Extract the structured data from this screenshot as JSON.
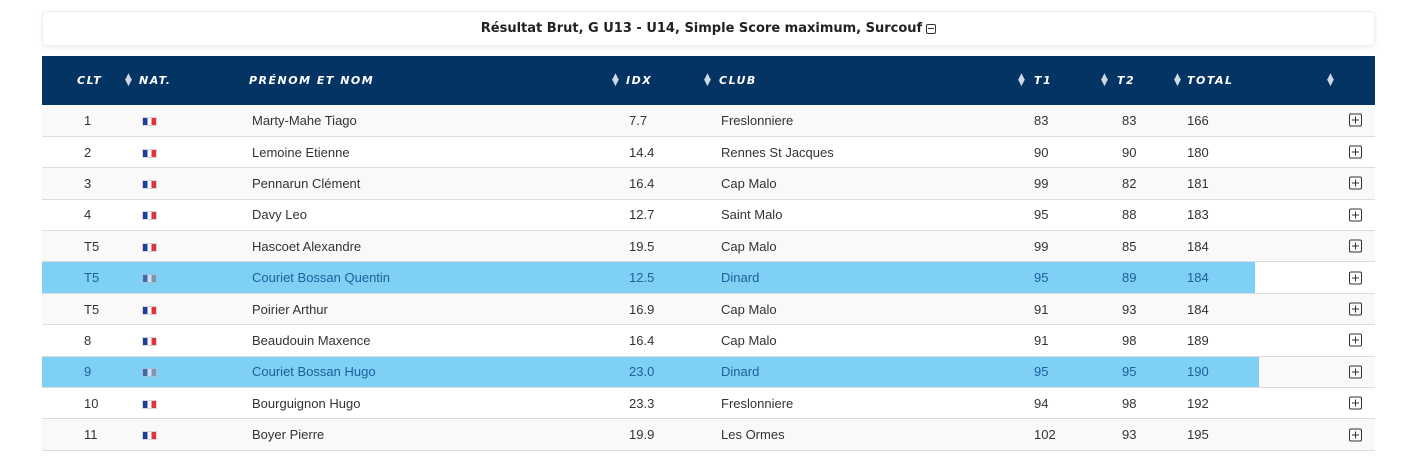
{
  "title": {
    "text": "Résultat Brut, G U13 - U14, Simple Score maximum, Surcouf",
    "collapse_icon": "minus-square-icon"
  },
  "table": {
    "headers": {
      "clt": "CLT",
      "nat": "NAT.",
      "name": "PRÉNOM ET NOM",
      "idx": "IDX",
      "club": "CLUB",
      "t1": "T1",
      "t2": "T2",
      "total": "TOTAL"
    },
    "sort_icon": "sort-arrows-icon",
    "row_expand_icon": "plus-square-icon",
    "highlight_color": "#7fd0f5",
    "header_color": "#033464",
    "rows": [
      {
        "clt": "1",
        "nat": "FR",
        "name": "Marty-Mahe Tiago",
        "idx": "7.7",
        "club": "Freslonniere",
        "t1": "83",
        "t2": "83",
        "total": "166",
        "highlight": false
      },
      {
        "clt": "2",
        "nat": "FR",
        "name": "Lemoine Etienne",
        "idx": "14.4",
        "club": "Rennes St Jacques",
        "t1": "90",
        "t2": "90",
        "total": "180",
        "highlight": false
      },
      {
        "clt": "3",
        "nat": "FR",
        "name": "Pennarun Clément",
        "idx": "16.4",
        "club": "Cap Malo",
        "t1": "99",
        "t2": "82",
        "total": "181",
        "highlight": false
      },
      {
        "clt": "4",
        "nat": "FR",
        "name": "Davy Leo",
        "idx": "12.7",
        "club": "Saint Malo",
        "t1": "95",
        "t2": "88",
        "total": "183",
        "highlight": false
      },
      {
        "clt": "T5",
        "nat": "FR",
        "name": "Hascoet Alexandre",
        "idx": "19.5",
        "club": "Cap Malo",
        "t1": "99",
        "t2": "85",
        "total": "184",
        "highlight": false
      },
      {
        "clt": "T5",
        "nat": "FR",
        "name": "Couriet Bossan Quentin",
        "idx": "12.5",
        "club": "Dinard",
        "t1": "95",
        "t2": "89",
        "total": "184",
        "highlight": true
      },
      {
        "clt": "T5",
        "nat": "FR",
        "name": "Poirier Arthur",
        "idx": "16.9",
        "club": "Cap Malo",
        "t1": "91",
        "t2": "93",
        "total": "184",
        "highlight": false
      },
      {
        "clt": "8",
        "nat": "FR",
        "name": "Beaudouin Maxence",
        "idx": "16.4",
        "club": "Cap Malo",
        "t1": "91",
        "t2": "98",
        "total": "189",
        "highlight": false
      },
      {
        "clt": "9",
        "nat": "FR",
        "name": "Couriet Bossan Hugo",
        "idx": "23.0",
        "club": "Dinard",
        "t1": "95",
        "t2": "95",
        "total": "190",
        "highlight": true
      },
      {
        "clt": "10",
        "nat": "FR",
        "name": "Bourguignon Hugo",
        "idx": "23.3",
        "club": "Freslonniere",
        "t1": "94",
        "t2": "98",
        "total": "192",
        "highlight": false
      },
      {
        "clt": "11",
        "nat": "FR",
        "name": "Boyer Pierre",
        "idx": "19.9",
        "club": "Les Ormes",
        "t1": "102",
        "t2": "93",
        "total": "195",
        "highlight": false
      }
    ]
  }
}
